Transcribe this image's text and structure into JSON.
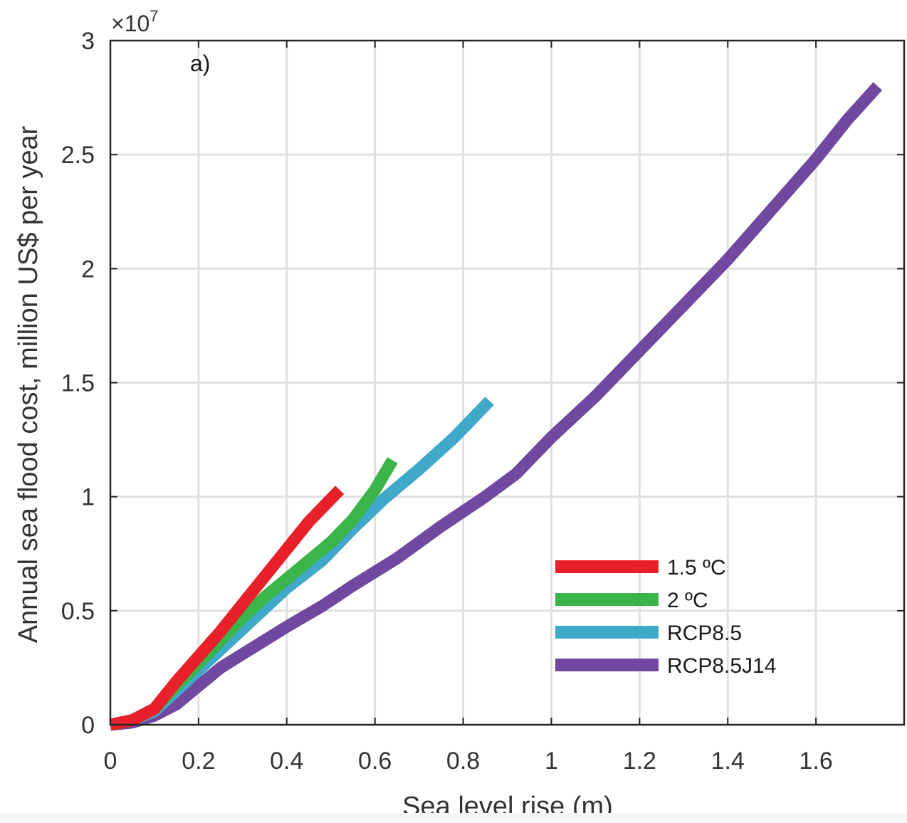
{
  "chart_data": {
    "type": "line",
    "panel_label": "a)",
    "xlabel": "Sea level rise (m)",
    "ylabel": "Annual sea flood cost, million US$ per year",
    "y_multiplier_label": "×10",
    "y_multiplier_exponent": "7",
    "xlim": [
      0,
      1.8
    ],
    "ylim": [
      0,
      3
    ],
    "x_ticks": [
      0,
      0.2,
      0.4,
      0.6,
      0.8,
      1,
      1.2,
      1.4,
      1.6
    ],
    "x_tick_labels": [
      "0",
      "0.2",
      "0.4",
      "0.6",
      "0.8",
      "1",
      "1.2",
      "1.4",
      "1.6"
    ],
    "y_ticks": [
      0,
      0.5,
      1,
      1.5,
      2,
      2.5,
      3
    ],
    "y_tick_labels": [
      "0",
      "0.5",
      "1",
      "1.5",
      "2",
      "2.5",
      "3"
    ],
    "grid": true,
    "legend_position": "lower-right",
    "series": [
      {
        "name": "1.5 ºC",
        "color": "#e8202a",
        "points": [
          [
            0.0,
            0.0
          ],
          [
            0.05,
            0.02
          ],
          [
            0.1,
            0.07
          ],
          [
            0.15,
            0.19
          ],
          [
            0.2,
            0.3
          ],
          [
            0.25,
            0.41
          ],
          [
            0.3,
            0.53
          ],
          [
            0.35,
            0.65
          ],
          [
            0.4,
            0.77
          ],
          [
            0.45,
            0.89
          ],
          [
            0.52,
            1.03
          ]
        ]
      },
      {
        "name": "2 ºC",
        "color": "#3bb44a",
        "points": [
          [
            0.0,
            0.0
          ],
          [
            0.05,
            0.02
          ],
          [
            0.1,
            0.07
          ],
          [
            0.15,
            0.17
          ],
          [
            0.2,
            0.27
          ],
          [
            0.25,
            0.37
          ],
          [
            0.3,
            0.47
          ],
          [
            0.35,
            0.56
          ],
          [
            0.4,
            0.64
          ],
          [
            0.5,
            0.8
          ],
          [
            0.55,
            0.9
          ],
          [
            0.6,
            1.03
          ],
          [
            0.64,
            1.16
          ]
        ]
      },
      {
        "name": "RCP8.5",
        "color": "#40a9c9",
        "points": [
          [
            0.0,
            0.0
          ],
          [
            0.05,
            0.02
          ],
          [
            0.1,
            0.06
          ],
          [
            0.15,
            0.15
          ],
          [
            0.2,
            0.24
          ],
          [
            0.25,
            0.33
          ],
          [
            0.3,
            0.42
          ],
          [
            0.35,
            0.51
          ],
          [
            0.4,
            0.6
          ],
          [
            0.48,
            0.72
          ],
          [
            0.55,
            0.86
          ],
          [
            0.62,
            0.99
          ],
          [
            0.7,
            1.12
          ],
          [
            0.78,
            1.26
          ],
          [
            0.86,
            1.42
          ]
        ]
      },
      {
        "name": "RCP8.5J14",
        "color": "#7148a0",
        "points": [
          [
            0.0,
            0.0
          ],
          [
            0.05,
            0.01
          ],
          [
            0.1,
            0.04
          ],
          [
            0.15,
            0.09
          ],
          [
            0.2,
            0.17
          ],
          [
            0.25,
            0.25
          ],
          [
            0.3,
            0.31
          ],
          [
            0.35,
            0.37
          ],
          [
            0.4,
            0.43
          ],
          [
            0.48,
            0.52
          ],
          [
            0.55,
            0.61
          ],
          [
            0.65,
            0.73
          ],
          [
            0.75,
            0.87
          ],
          [
            0.85,
            1.0
          ],
          [
            0.92,
            1.1
          ],
          [
            1.0,
            1.26
          ],
          [
            1.1,
            1.44
          ],
          [
            1.2,
            1.64
          ],
          [
            1.3,
            1.84
          ],
          [
            1.4,
            2.04
          ],
          [
            1.5,
            2.26
          ],
          [
            1.6,
            2.48
          ],
          [
            1.67,
            2.65
          ],
          [
            1.74,
            2.8
          ]
        ]
      }
    ]
  }
}
